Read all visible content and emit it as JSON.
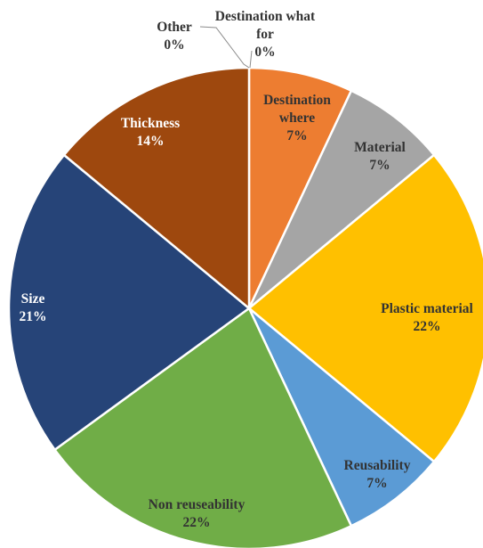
{
  "chart_data": {
    "type": "pie",
    "title": "",
    "slices": [
      {
        "label": "Destination what for",
        "value": 0,
        "pct_label": "0%",
        "color": "#4472c4",
        "text_color": "#333333"
      },
      {
        "label": "Destination where",
        "value": 7,
        "pct_label": "7%",
        "color": "#ed7d31",
        "text_color": "#333333"
      },
      {
        "label": "Material",
        "value": 7,
        "pct_label": "7%",
        "color": "#a5a5a5",
        "text_color": "#333333"
      },
      {
        "label": "Plastic material",
        "value": 22,
        "pct_label": "22%",
        "color": "#ffc000",
        "text_color": "#333333"
      },
      {
        "label": "Reusability",
        "value": 7,
        "pct_label": "7%",
        "color": "#5b9bd5",
        "text_color": "#333333"
      },
      {
        "label": "Non reuseability",
        "value": 22,
        "pct_label": "22%",
        "color": "#70ad47",
        "text_color": "#333333"
      },
      {
        "label": "Size",
        "value": 21,
        "pct_label": "21%",
        "color": "#264478",
        "text_color": "#ffffff"
      },
      {
        "label": "Thickness",
        "value": 14,
        "pct_label": "14%",
        "color": "#9e480e",
        "text_color": "#ffffff"
      },
      {
        "label": "Other",
        "value": 0,
        "pct_label": "0%",
        "color": "#636363",
        "text_color": "#333333"
      }
    ]
  }
}
